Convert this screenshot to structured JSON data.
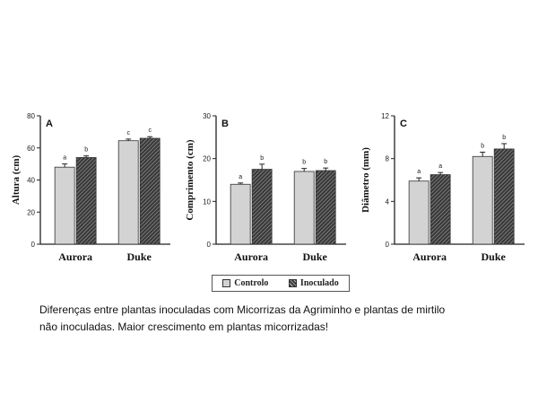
{
  "chart_data": [
    {
      "type": "bar",
      "panel": "A",
      "ylabel": "Altura (cm)",
      "ylim": [
        0,
        80
      ],
      "yticks": [
        0,
        20,
        40,
        60,
        80
      ],
      "categories": [
        "Aurora",
        "Duke"
      ],
      "series": [
        {
          "name": "Controlo",
          "values": [
            48,
            64.5
          ],
          "errors": [
            2,
            1
          ],
          "letters": [
            "a",
            "c"
          ]
        },
        {
          "name": "Inoculado",
          "values": [
            54,
            66
          ],
          "errors": [
            1,
            1
          ],
          "letters": [
            "b",
            "c"
          ]
        }
      ]
    },
    {
      "type": "bar",
      "panel": "B",
      "ylabel": "Comprimento (cm)",
      "ylim": [
        0,
        30
      ],
      "yticks": [
        0,
        10,
        20,
        30
      ],
      "categories": [
        "Aurora",
        "Duke"
      ],
      "series": [
        {
          "name": "Controlo",
          "values": [
            14,
            17
          ],
          "errors": [
            0.3,
            0.7
          ],
          "letters": [
            "a",
            "b"
          ]
        },
        {
          "name": "Inoculado",
          "values": [
            17.5,
            17.2
          ],
          "errors": [
            1.2,
            0.6
          ],
          "letters": [
            "b",
            "b"
          ]
        }
      ]
    },
    {
      "type": "bar",
      "panel": "C",
      "ylabel": "Diâmetro (mm)",
      "ylim": [
        0,
        12
      ],
      "yticks": [
        0,
        4,
        8,
        12
      ],
      "categories": [
        "Aurora",
        "Duke"
      ],
      "series": [
        {
          "name": "Controlo",
          "values": [
            5.9,
            8.2
          ],
          "errors": [
            0.3,
            0.4
          ],
          "letters": [
            "a",
            "b"
          ]
        },
        {
          "name": "Inoculado",
          "values": [
            6.5,
            8.9
          ],
          "errors": [
            0.2,
            0.5
          ],
          "letters": [
            "a",
            "b"
          ]
        }
      ]
    }
  ],
  "legend": {
    "controlo_label": "Controlo",
    "inoculado_label": "Inoculado"
  },
  "caption": {
    "line1": "Diferenças entre  plantas  inoculadas com Micorrizas da Agriminho e plantas de mirtilo",
    "line2": "não inoculadas. Maior crescimento em plantas micorrizadas!"
  },
  "colors": {
    "controlo": "#d3d3d3",
    "inoculado": "#3a3a3a",
    "axis": "#222222"
  }
}
